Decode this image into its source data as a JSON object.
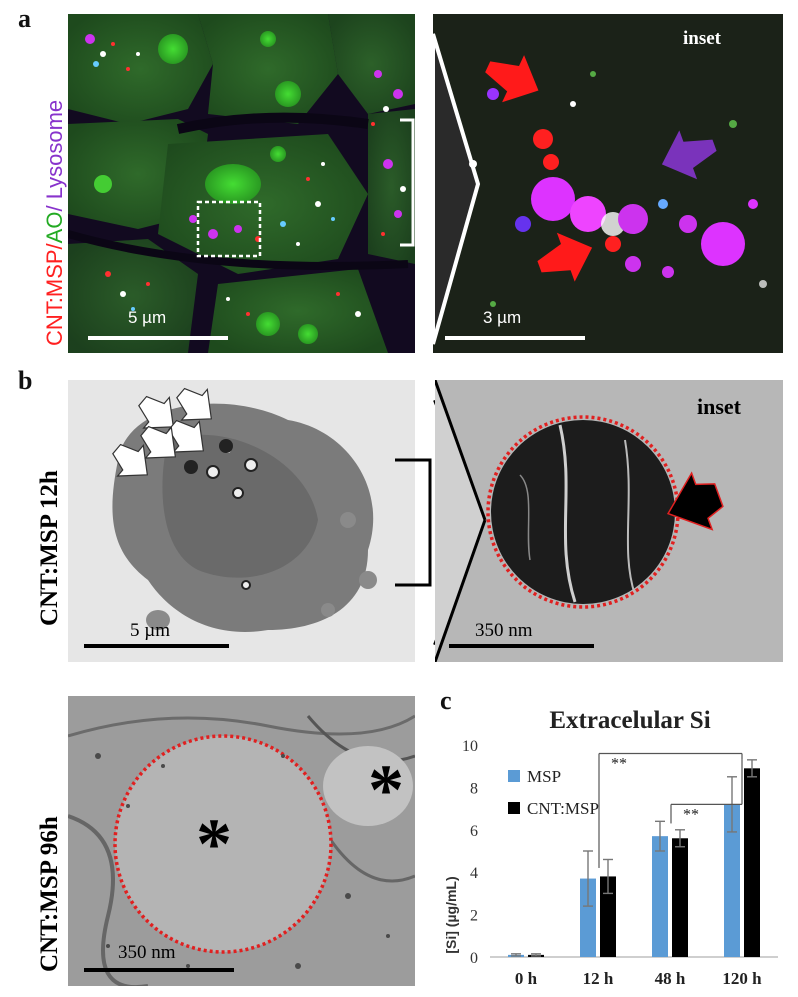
{
  "panel_a": {
    "letter": "a",
    "side_label": {
      "part1": "CNT:MSP",
      "sep1": "/",
      "part2": "AO",
      "sep2": "/ ",
      "part3": "Lysosome"
    },
    "left_scale": "5 µm",
    "inset_label": "inset",
    "inset_scale": "3 µm",
    "colors": {
      "red": "#ff2020",
      "green": "#22aa22",
      "purple": "#8833cc"
    }
  },
  "panel_b": {
    "letter": "b",
    "row1_label": "CNT:MSP 12h",
    "row1_left_scale": "5 µm",
    "inset_label": "inset",
    "inset_scale": "350 nm",
    "row2_label": "CNT:MSP 96h",
    "row2_scale": "350 nm",
    "asterisk": "*"
  },
  "panel_c": {
    "letter": "c"
  },
  "chart_data": {
    "type": "bar",
    "title": "Extracelular Si",
    "ylabel": "[Si] (µg/mL)",
    "xlabel": "",
    "categories": [
      "0 h",
      "12 h",
      "48 h",
      "120 h"
    ],
    "ylim": [
      0,
      10
    ],
    "yticks": [
      0,
      2,
      4,
      6,
      8,
      10
    ],
    "grid": false,
    "legend_position": "top-left",
    "series": [
      {
        "name": "MSP",
        "color": "#5b9bd5",
        "values": [
          0.1,
          3.7,
          5.7,
          7.2
        ],
        "errors": [
          0.05,
          1.3,
          0.7,
          1.3
        ]
      },
      {
        "name": "CNT:MSP",
        "color": "#000000",
        "values": [
          0.1,
          3.8,
          5.6,
          8.9
        ],
        "errors": [
          0.05,
          0.8,
          0.4,
          0.4
        ]
      }
    ],
    "significance": [
      {
        "from": "12 h",
        "to": "120 h",
        "label": "**"
      },
      {
        "from": "48 h",
        "to": "120 h",
        "label": "**"
      }
    ]
  }
}
